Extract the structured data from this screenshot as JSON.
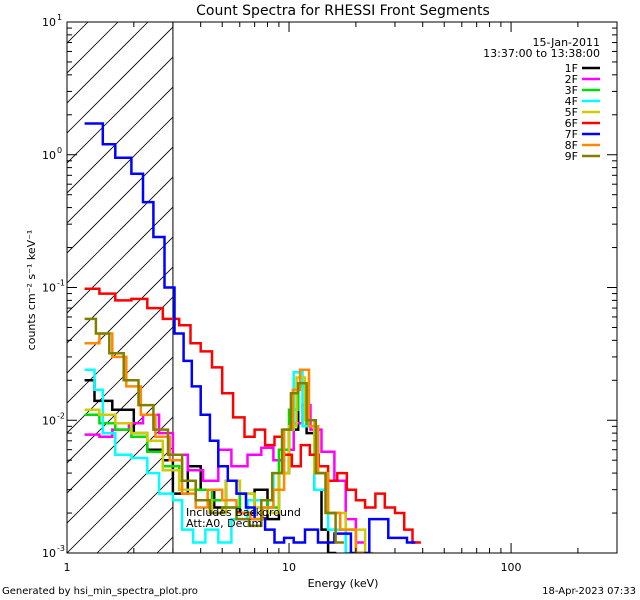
{
  "chart_data": {
    "type": "line",
    "title": "Count Spectra for RHESSI Front Segments",
    "xlabel": "Energy (keV)",
    "ylabel": "counts cm⁻² s⁻¹ keV⁻¹",
    "x_scale": "log",
    "y_scale": "log",
    "xlim": [
      1,
      300
    ],
    "ylim": [
      0.001,
      10
    ],
    "x_ticks": [
      {
        "v": 1,
        "label": "1"
      },
      {
        "v": 10,
        "label": "10"
      },
      {
        "v": 100,
        "label": "100"
      }
    ],
    "y_ticks": [
      {
        "v": 0.001,
        "base": "10",
        "exp": "-3"
      },
      {
        "v": 0.01,
        "base": "10",
        "exp": "-2"
      },
      {
        "v": 0.1,
        "base": "10",
        "exp": "-1"
      },
      {
        "v": 1,
        "base": "10",
        "exp": "0"
      },
      {
        "v": 10,
        "base": "10",
        "exp": "1"
      }
    ],
    "hatched_region": {
      "x0": 1,
      "x1": 3
    },
    "legend_placement": "top-right",
    "date": "15-Jan-2011",
    "time_range": "13:37:00 to 13:38:00",
    "annotations": [
      "Includes Background",
      "Att:A0, Decim"
    ],
    "footer_left": "Generated by hsi_min_spectra_plot.pro",
    "footer_right": "18-Apr-2023 07:33",
    "series": [
      {
        "name": "1F",
        "color": "#000000",
        "points": [
          [
            1.2,
            0.02
          ],
          [
            1.33,
            0.014
          ],
          [
            1.6,
            0.012
          ],
          [
            2.0,
            0.008
          ],
          [
            2.3,
            0.006
          ],
          [
            2.7,
            0.005
          ],
          [
            3.0,
            0.0028
          ],
          [
            3.5,
            0.0045
          ],
          [
            4.0,
            0.003
          ],
          [
            4.6,
            0.0022
          ],
          [
            5.2,
            0.0035
          ],
          [
            6.0,
            0.002
          ],
          [
            7.0,
            0.003
          ],
          [
            8.0,
            0.0018
          ],
          [
            9.0,
            0.004
          ],
          [
            10.0,
            0.0085
          ],
          [
            11.0,
            0.018
          ],
          [
            12.0,
            0.008
          ],
          [
            13.0,
            0.003
          ],
          [
            14.0,
            0.0015
          ],
          [
            15.0,
            0.001
          ]
        ]
      },
      {
        "name": "2F",
        "color": "#ff00ff",
        "points": [
          [
            1.2,
            0.0078
          ],
          [
            1.4,
            0.0075
          ],
          [
            1.6,
            0.0085
          ],
          [
            1.9,
            0.0095
          ],
          [
            2.2,
            0.011
          ],
          [
            2.6,
            0.008
          ],
          [
            3.0,
            0.0055
          ],
          [
            3.5,
            0.0042
          ],
          [
            4.1,
            0.0035
          ],
          [
            4.8,
            0.006
          ],
          [
            5.5,
            0.0045
          ],
          [
            6.5,
            0.0055
          ],
          [
            7.5,
            0.0062
          ],
          [
            8.5,
            0.005
          ],
          [
            9.5,
            0.006
          ],
          [
            10.5,
            0.0095
          ],
          [
            11.5,
            0.013
          ],
          [
            12.5,
            0.0085
          ],
          [
            14.0,
            0.0058
          ],
          [
            16.0,
            0.0035
          ],
          [
            18.0,
            0.0018
          ],
          [
            20.0,
            0.0012
          ]
        ]
      },
      {
        "name": "3F",
        "color": "#00dd00",
        "points": [
          [
            1.2,
            0.011
          ],
          [
            1.4,
            0.0095
          ],
          [
            1.65,
            0.0085
          ],
          [
            1.95,
            0.0075
          ],
          [
            2.3,
            0.0058
          ],
          [
            2.7,
            0.0045
          ],
          [
            3.2,
            0.0035
          ],
          [
            3.8,
            0.003
          ],
          [
            4.5,
            0.0025
          ],
          [
            5.2,
            0.0022
          ],
          [
            6.0,
            0.0028
          ],
          [
            7.0,
            0.0025
          ],
          [
            8.0,
            0.0022
          ],
          [
            9.0,
            0.006
          ],
          [
            10.0,
            0.012
          ],
          [
            11.0,
            0.018
          ],
          [
            12.0,
            0.009
          ],
          [
            13.5,
            0.004
          ],
          [
            15.0,
            0.002
          ],
          [
            17.0,
            0.0015
          ],
          [
            20.0,
            0.001
          ]
        ]
      },
      {
        "name": "4F",
        "color": "#00ffff",
        "points": [
          [
            1.2,
            0.024
          ],
          [
            1.33,
            0.017
          ],
          [
            1.45,
            0.008
          ],
          [
            1.65,
            0.0055
          ],
          [
            1.95,
            0.0052
          ],
          [
            2.3,
            0.004
          ],
          [
            2.6,
            0.0028
          ],
          [
            3.0,
            0.0025
          ],
          [
            3.3,
            0.0015
          ],
          [
            3.7,
            0.0012
          ],
          [
            4.2,
            0.0015
          ],
          [
            4.8,
            0.0012
          ],
          [
            5.5,
            0.0018
          ],
          [
            6.5,
            0.0025
          ],
          [
            7.5,
            0.0022
          ],
          [
            8.5,
            0.004
          ],
          [
            9.5,
            0.0085
          ],
          [
            10.5,
            0.023
          ],
          [
            11.5,
            0.009
          ],
          [
            13.0,
            0.003
          ],
          [
            15.0,
            0.0015
          ],
          [
            18.0,
            0.001
          ]
        ]
      },
      {
        "name": "5F",
        "color": "#cccc00",
        "points": [
          [
            1.2,
            0.012
          ],
          [
            1.4,
            0.011
          ],
          [
            1.65,
            0.0095
          ],
          [
            1.95,
            0.008
          ],
          [
            2.3,
            0.007
          ],
          [
            2.7,
            0.0042
          ],
          [
            3.2,
            0.003
          ],
          [
            3.8,
            0.0025
          ],
          [
            4.5,
            0.002
          ],
          [
            5.2,
            0.0035
          ],
          [
            6.0,
            0.0028
          ],
          [
            7.0,
            0.0022
          ],
          [
            8.0,
            0.002
          ],
          [
            9.0,
            0.004
          ],
          [
            10.0,
            0.009
          ],
          [
            10.8,
            0.021
          ],
          [
            11.8,
            0.01
          ],
          [
            13.0,
            0.004
          ],
          [
            15.0,
            0.002
          ],
          [
            18.0,
            0.0015
          ],
          [
            22.0,
            0.001
          ]
        ]
      },
      {
        "name": "6F",
        "color": "#ff0000",
        "points": [
          [
            1.2,
            0.098
          ],
          [
            1.4,
            0.09
          ],
          [
            1.65,
            0.08
          ],
          [
            1.95,
            0.082
          ],
          [
            2.3,
            0.07
          ],
          [
            2.7,
            0.058
          ],
          [
            3.2,
            0.052
          ],
          [
            3.6,
            0.038
          ],
          [
            4.0,
            0.033
          ],
          [
            4.5,
            0.025
          ],
          [
            5.0,
            0.016
          ],
          [
            5.6,
            0.0105
          ],
          [
            6.3,
            0.0075
          ],
          [
            7.0,
            0.0085
          ],
          [
            7.8,
            0.0065
          ],
          [
            8.6,
            0.0075
          ],
          [
            9.4,
            0.0055
          ],
          [
            10.3,
            0.0045
          ],
          [
            11.3,
            0.0065
          ],
          [
            12.4,
            0.0055
          ],
          [
            13.6,
            0.0045
          ],
          [
            15.0,
            0.0035
          ],
          [
            16.5,
            0.004
          ],
          [
            18.2,
            0.003
          ],
          [
            20.0,
            0.0025
          ],
          [
            22.0,
            0.0022
          ],
          [
            24.5,
            0.0028
          ],
          [
            27.0,
            0.0022
          ],
          [
            30.0,
            0.002
          ],
          [
            33.0,
            0.0015
          ],
          [
            36.0,
            0.0012
          ]
        ]
      },
      {
        "name": "7F",
        "color": "#0000ff",
        "points": [
          [
            1.2,
            1.72
          ],
          [
            1.45,
            1.2
          ],
          [
            1.65,
            0.95
          ],
          [
            1.95,
            0.72
          ],
          [
            2.2,
            0.44
          ],
          [
            2.45,
            0.24
          ],
          [
            2.75,
            0.1
          ],
          [
            3.05,
            0.045
          ],
          [
            3.35,
            0.028
          ],
          [
            3.65,
            0.018
          ],
          [
            4.0,
            0.011
          ],
          [
            4.4,
            0.007
          ],
          [
            4.8,
            0.0045
          ],
          [
            5.3,
            0.0035
          ],
          [
            5.8,
            0.0028
          ],
          [
            6.4,
            0.0022
          ],
          [
            7.0,
            0.0018
          ],
          [
            7.8,
            0.0015
          ],
          [
            8.6,
            0.0012
          ],
          [
            9.5,
            0.0013
          ],
          [
            10.5,
            0.0012
          ],
          [
            11.8,
            0.0015
          ],
          [
            13.5,
            0.0012
          ],
          [
            16.0,
            0.0014
          ],
          [
            19.0,
            0.001
          ],
          [
            23.0,
            0.0018
          ],
          [
            28.0,
            0.0013
          ],
          [
            34.0,
            0.0012
          ]
        ]
      },
      {
        "name": "8F",
        "color": "#ff8800",
        "points": [
          [
            1.2,
            0.038
          ],
          [
            1.4,
            0.045
          ],
          [
            1.6,
            0.03
          ],
          [
            1.85,
            0.018
          ],
          [
            2.15,
            0.011
          ],
          [
            2.5,
            0.0075
          ],
          [
            2.9,
            0.005
          ],
          [
            3.3,
            0.0028
          ],
          [
            3.8,
            0.0022
          ],
          [
            4.3,
            0.003
          ],
          [
            5.0,
            0.0025
          ],
          [
            5.8,
            0.002
          ],
          [
            6.7,
            0.0018
          ],
          [
            7.6,
            0.0022
          ],
          [
            8.5,
            0.003
          ],
          [
            9.5,
            0.0085
          ],
          [
            10.4,
            0.017
          ],
          [
            11.2,
            0.024
          ],
          [
            12.3,
            0.009
          ],
          [
            13.5,
            0.004
          ],
          [
            15.0,
            0.002
          ],
          [
            17.0,
            0.0015
          ],
          [
            20.0,
            0.001
          ]
        ]
      },
      {
        "name": "9F",
        "color": "#808000",
        "points": [
          [
            1.2,
            0.058
          ],
          [
            1.35,
            0.045
          ],
          [
            1.55,
            0.032
          ],
          [
            1.8,
            0.02
          ],
          [
            2.1,
            0.013
          ],
          [
            2.45,
            0.0085
          ],
          [
            2.85,
            0.0055
          ],
          [
            3.3,
            0.0035
          ],
          [
            3.8,
            0.0025
          ],
          [
            4.4,
            0.002
          ],
          [
            5.0,
            0.0022
          ],
          [
            5.8,
            0.0018
          ],
          [
            6.6,
            0.0016
          ],
          [
            7.5,
            0.0025
          ],
          [
            8.4,
            0.004
          ],
          [
            9.3,
            0.0085
          ],
          [
            10.2,
            0.016
          ],
          [
            11.0,
            0.019
          ],
          [
            12.0,
            0.01
          ],
          [
            13.2,
            0.004
          ],
          [
            14.6,
            0.002
          ],
          [
            16.2,
            0.0012
          ]
        ]
      }
    ]
  }
}
